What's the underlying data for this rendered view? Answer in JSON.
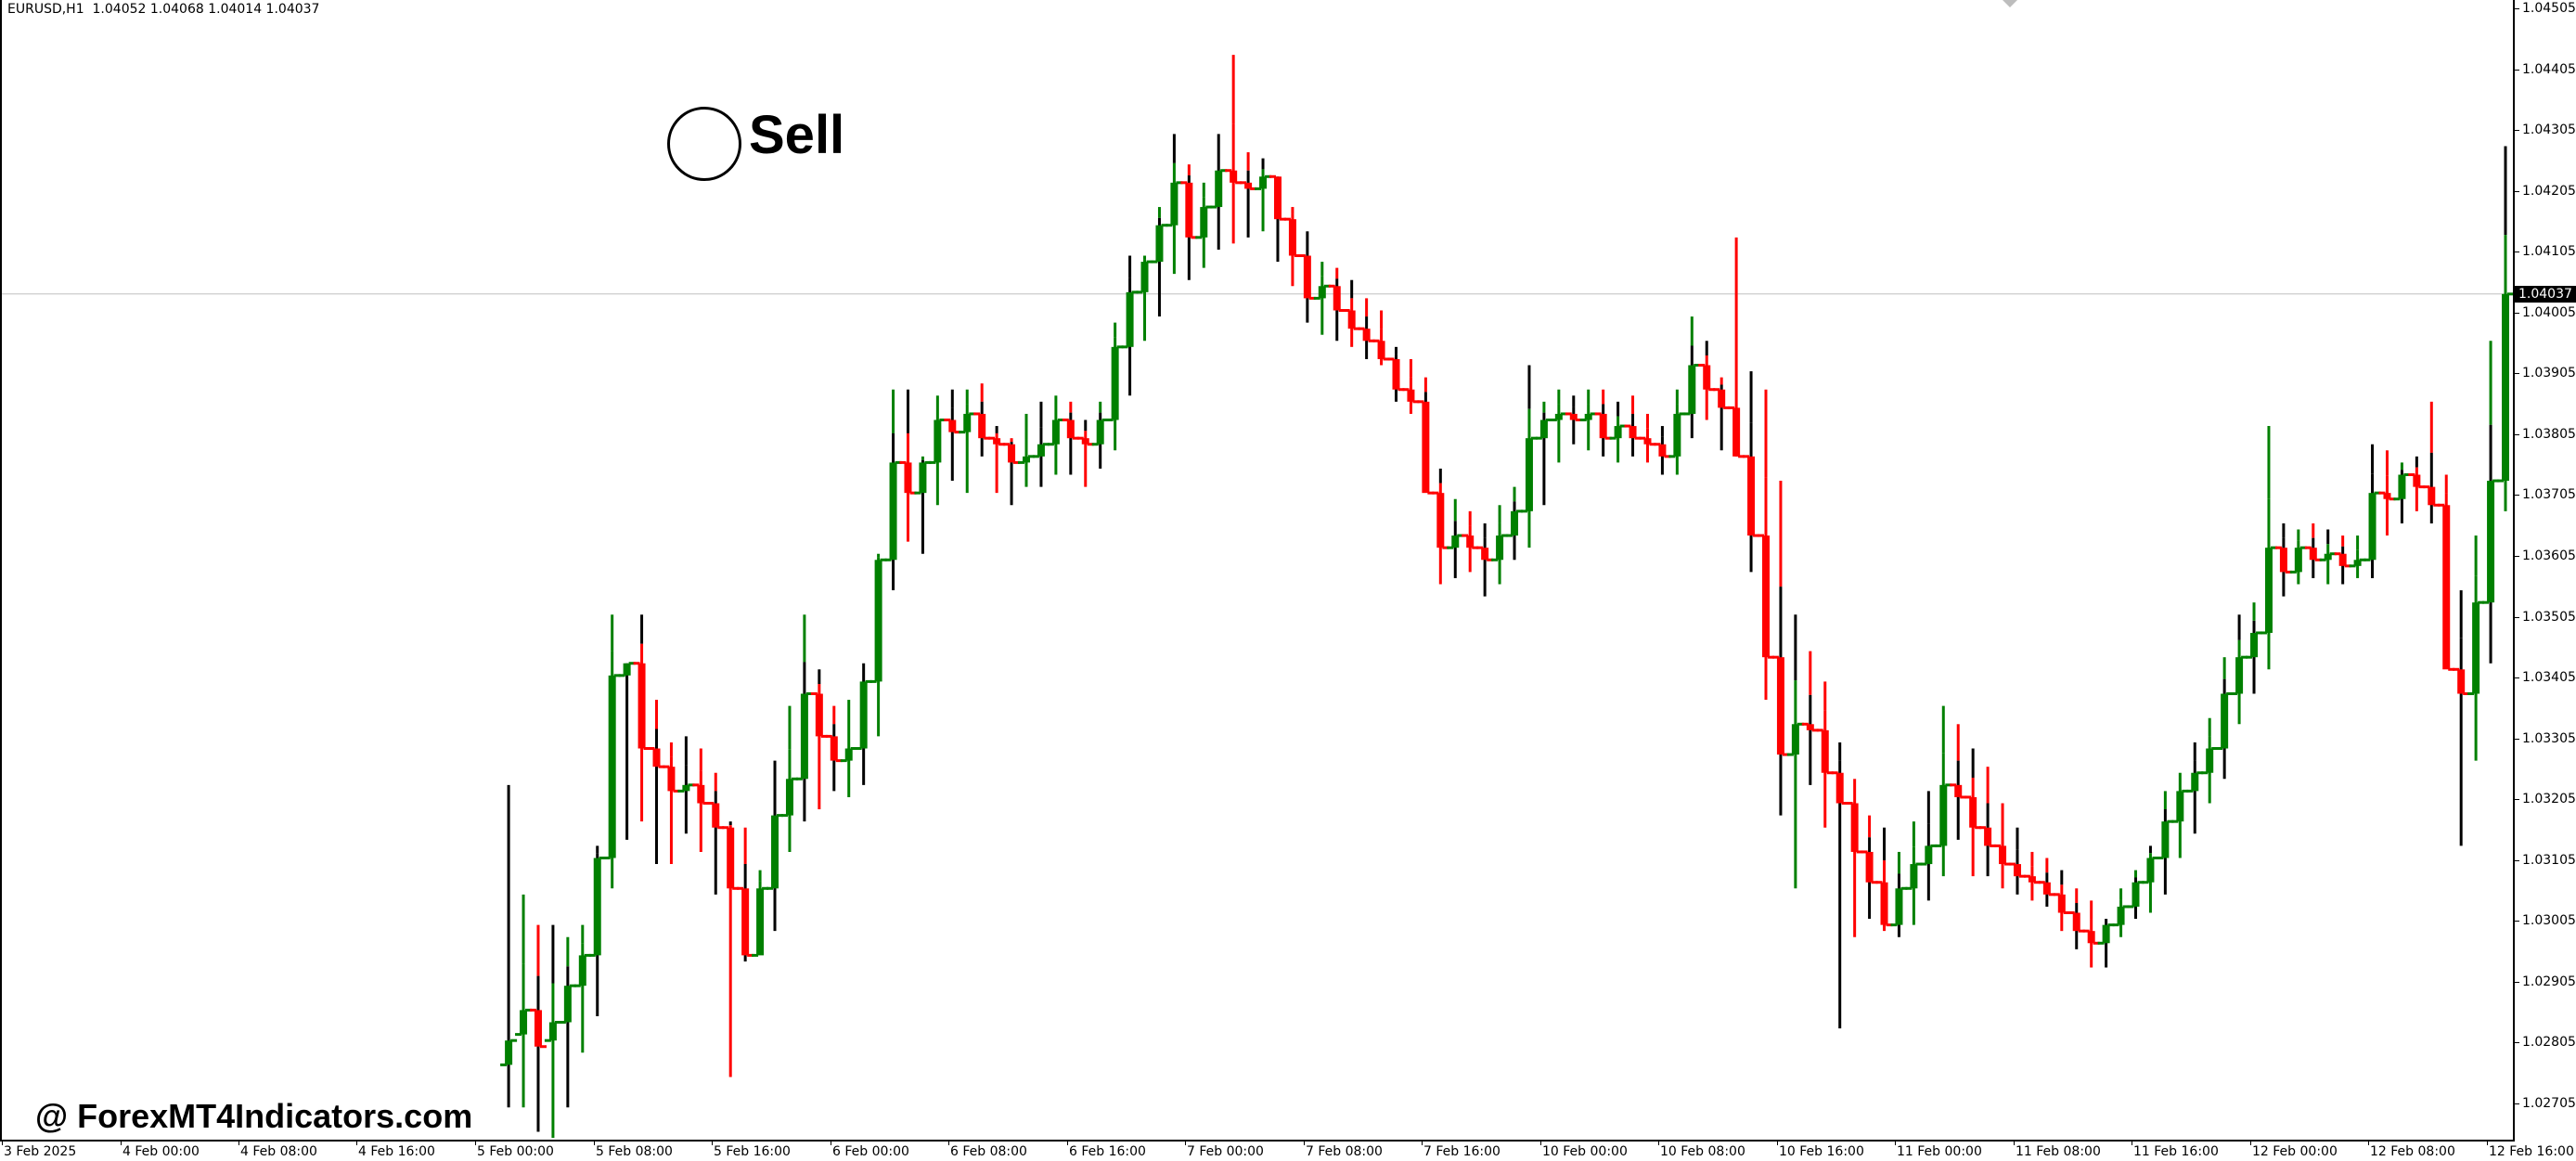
{
  "window": {
    "symbol_info": "EURUSD,H1  1.04052 1.04068 1.04014 1.04037",
    "watermark": "@ ForexMT4Indicators.com",
    "signal_label": "Sell"
  },
  "colors": {
    "bull": "#008000",
    "bear": "#ff0000",
    "neutral": "#000000",
    "grid_current": "#c0c0c0"
  },
  "price_axis": {
    "ticks": [
      "1.04505",
      "1.04405",
      "1.04305",
      "1.04205",
      "1.04105",
      "1.04005",
      "1.03905",
      "1.03805",
      "1.03705",
      "1.03605",
      "1.03505",
      "1.03405",
      "1.03305",
      "1.03205",
      "1.03105",
      "1.03005",
      "1.02905",
      "1.02805",
      "1.02705"
    ],
    "current_price": "1.04037"
  },
  "time_axis": {
    "labels": [
      "3 Feb 2025",
      "4 Feb 00:00",
      "4 Feb 08:00",
      "4 Feb 16:00",
      "5 Feb 00:00",
      "5 Feb 08:00",
      "5 Feb 16:00",
      "6 Feb 00:00",
      "6 Feb 08:00",
      "6 Feb 16:00",
      "7 Feb 00:00",
      "7 Feb 08:00",
      "7 Feb 16:00",
      "10 Feb 00:00",
      "10 Feb 08:00",
      "10 Feb 16:00",
      "11 Feb 00:00",
      "11 Feb 08:00",
      "11 Feb 16:00",
      "12 Feb 00:00",
      "12 Feb 08:00",
      "12 Feb 16:00"
    ]
  },
  "chart_data": {
    "type": "candlestick",
    "title": "EURUSD,H1",
    "header_ohlc": {
      "open": 1.04052,
      "high": 1.04068,
      "low": 1.04014,
      "close": 1.04037
    },
    "ylim": [
      1.02645,
      1.0452
    ],
    "yticks": [
      1.04505,
      1.04405,
      1.04305,
      1.04205,
      1.04105,
      1.04005,
      1.03905,
      1.03805,
      1.03705,
      1.03605,
      1.03505,
      1.03405,
      1.03305,
      1.03205,
      1.03105,
      1.03005,
      1.02905,
      1.02805,
      1.02705
    ],
    "xticks": [
      "3 Feb 2025",
      "4 Feb 00:00",
      "4 Feb 08:00",
      "4 Feb 16:00",
      "5 Feb 00:00",
      "5 Feb 08:00",
      "5 Feb 16:00",
      "6 Feb 00:00",
      "6 Feb 08:00",
      "6 Feb 16:00",
      "7 Feb 00:00",
      "7 Feb 08:00",
      "7 Feb 16:00",
      "10 Feb 00:00",
      "10 Feb 08:00",
      "10 Feb 16:00",
      "11 Feb 00:00",
      "11 Feb 08:00",
      "11 Feb 16:00",
      "12 Feb 00:00",
      "12 Feb 08:00",
      "12 Feb 16:00"
    ],
    "current_price": 1.04037,
    "annotations": [
      {
        "text": "Sell",
        "near": "5 Feb ~11:00",
        "price": 1.0429
      }
    ],
    "ohlc": [
      [
        1.0277,
        1.0323,
        1.027,
        1.0281
      ],
      [
        1.0282,
        1.0305,
        1.027,
        1.0286
      ],
      [
        1.0286,
        1.03,
        1.0266,
        1.028
      ],
      [
        1.0281,
        1.03,
        1.0265,
        1.0284
      ],
      [
        1.0284,
        1.0298,
        1.027,
        1.029
      ],
      [
        1.029,
        1.03,
        1.0279,
        1.0295
      ],
      [
        1.0295,
        1.0313,
        1.0285,
        1.0311
      ],
      [
        1.0311,
        1.0351,
        1.0306,
        1.0341
      ],
      [
        1.0341,
        1.0343,
        1.0314,
        1.0343
      ],
      [
        1.0343,
        1.0351,
        1.0317,
        1.0329
      ],
      [
        1.0329,
        1.0337,
        1.031,
        1.0326
      ],
      [
        1.0326,
        1.033,
        1.031,
        1.0322
      ],
      [
        1.0322,
        1.0331,
        1.0315,
        1.0323
      ],
      [
        1.0323,
        1.0329,
        1.0312,
        1.032
      ],
      [
        1.032,
        1.0325,
        1.0305,
        1.0316
      ],
      [
        1.0316,
        1.0317,
        1.0275,
        1.0306
      ],
      [
        1.0306,
        1.0316,
        1.0294,
        1.0295
      ],
      [
        1.0295,
        1.0309,
        1.0296,
        1.0306
      ],
      [
        1.0306,
        1.0327,
        1.0299,
        1.0318
      ],
      [
        1.0318,
        1.0336,
        1.0312,
        1.0324
      ],
      [
        1.0324,
        1.0351,
        1.0317,
        1.0338
      ],
      [
        1.0338,
        1.0342,
        1.0319,
        1.0331
      ],
      [
        1.0331,
        1.0336,
        1.0322,
        1.0327
      ],
      [
        1.0327,
        1.0337,
        1.0321,
        1.0329
      ],
      [
        1.0329,
        1.0343,
        1.0323,
        1.034
      ],
      [
        1.034,
        1.0361,
        1.0331,
        1.036
      ],
      [
        1.036,
        1.0388,
        1.0355,
        1.0376
      ],
      [
        1.0376,
        1.0388,
        1.0363,
        1.0371
      ],
      [
        1.0371,
        1.0377,
        1.0361,
        1.0376
      ],
      [
        1.0376,
        1.0387,
        1.0369,
        1.0383
      ],
      [
        1.0383,
        1.0388,
        1.0373,
        1.0381
      ],
      [
        1.0381,
        1.0388,
        1.0371,
        1.0384
      ],
      [
        1.0384,
        1.0389,
        1.0377,
        1.038
      ],
      [
        1.038,
        1.0382,
        1.0371,
        1.0379
      ],
      [
        1.0379,
        1.038,
        1.0369,
        1.0376
      ],
      [
        1.0376,
        1.0384,
        1.0372,
        1.0377
      ],
      [
        1.0377,
        1.0386,
        1.0372,
        1.0379
      ],
      [
        1.0379,
        1.0387,
        1.0374,
        1.0383
      ],
      [
        1.0383,
        1.0386,
        1.0374,
        1.038
      ],
      [
        1.038,
        1.0383,
        1.0372,
        1.0379
      ],
      [
        1.0379,
        1.0386,
        1.0375,
        1.0383
      ],
      [
        1.0383,
        1.0399,
        1.0378,
        1.0395
      ],
      [
        1.0395,
        1.041,
        1.0387,
        1.0404
      ],
      [
        1.0404,
        1.041,
        1.0396,
        1.0409
      ],
      [
        1.0409,
        1.0418,
        1.04,
        1.0415
      ],
      [
        1.0415,
        1.043,
        1.0407,
        1.0422
      ],
      [
        1.0422,
        1.0425,
        1.0406,
        1.0413
      ],
      [
        1.0413,
        1.0422,
        1.0408,
        1.0418
      ],
      [
        1.0418,
        1.043,
        1.0411,
        1.0424
      ],
      [
        1.0424,
        1.0443,
        1.0412,
        1.0422
      ],
      [
        1.0422,
        1.0427,
        1.0413,
        1.0421
      ],
      [
        1.0421,
        1.0426,
        1.0414,
        1.0423
      ],
      [
        1.0423,
        1.0423,
        1.0409,
        1.0416
      ],
      [
        1.0416,
        1.0418,
        1.0405,
        1.041
      ],
      [
        1.041,
        1.0414,
        1.0399,
        1.0403
      ],
      [
        1.0403,
        1.0409,
        1.0397,
        1.0405
      ],
      [
        1.0405,
        1.0408,
        1.0396,
        1.0401
      ],
      [
        1.0401,
        1.0406,
        1.0395,
        1.0398
      ],
      [
        1.0398,
        1.0403,
        1.0393,
        1.0396
      ],
      [
        1.0396,
        1.0401,
        1.0392,
        1.0393
      ],
      [
        1.0393,
        1.0395,
        1.0386,
        1.0388
      ],
      [
        1.0388,
        1.0393,
        1.0384,
        1.0386
      ],
      [
        1.0386,
        1.039,
        1.0376,
        1.0371
      ],
      [
        1.0371,
        1.0375,
        1.0356,
        1.0362
      ],
      [
        1.0362,
        1.037,
        1.0357,
        1.0364
      ],
      [
        1.0364,
        1.0368,
        1.0358,
        1.0362
      ],
      [
        1.0362,
        1.0366,
        1.0354,
        1.036
      ],
      [
        1.036,
        1.0369,
        1.0356,
        1.0364
      ],
      [
        1.0364,
        1.0372,
        1.036,
        1.0368
      ],
      [
        1.0368,
        1.0392,
        1.0362,
        1.038
      ],
      [
        1.038,
        1.0386,
        1.0369,
        1.0383
      ],
      [
        1.0383,
        1.0388,
        1.0376,
        1.0384
      ],
      [
        1.0384,
        1.0387,
        1.0379,
        1.0383
      ],
      [
        1.0383,
        1.0388,
        1.0378,
        1.0384
      ],
      [
        1.0384,
        1.0388,
        1.0377,
        1.038
      ],
      [
        1.038,
        1.0386,
        1.0376,
        1.0382
      ],
      [
        1.0382,
        1.0387,
        1.0377,
        1.038
      ],
      [
        1.038,
        1.0384,
        1.0376,
        1.0379
      ],
      [
        1.0379,
        1.0382,
        1.0374,
        1.0377
      ],
      [
        1.0377,
        1.0388,
        1.0374,
        1.0384
      ],
      [
        1.0384,
        1.04,
        1.038,
        1.0392
      ],
      [
        1.0392,
        1.0396,
        1.0383,
        1.0388
      ],
      [
        1.0388,
        1.039,
        1.0378,
        1.0385
      ],
      [
        1.0385,
        1.0413,
        1.0377,
        1.0377
      ],
      [
        1.0377,
        1.0391,
        1.0358,
        1.0364
      ],
      [
        1.0364,
        1.0388,
        1.0337,
        1.0344
      ],
      [
        1.0344,
        1.0373,
        1.0318,
        1.0328
      ],
      [
        1.0328,
        1.0351,
        1.0306,
        1.0333
      ],
      [
        1.0333,
        1.0345,
        1.0323,
        1.0332
      ],
      [
        1.0332,
        1.034,
        1.0316,
        1.0325
      ],
      [
        1.0325,
        1.033,
        1.0283,
        1.032
      ],
      [
        1.032,
        1.0324,
        1.0298,
        1.0312
      ],
      [
        1.0312,
        1.0318,
        1.0301,
        1.0307
      ],
      [
        1.0307,
        1.0316,
        1.0299,
        1.03
      ],
      [
        1.03,
        1.0312,
        1.0298,
        1.0306
      ],
      [
        1.0306,
        1.0317,
        1.03,
        1.031
      ],
      [
        1.031,
        1.0322,
        1.0304,
        1.0313
      ],
      [
        1.0313,
        1.0336,
        1.0308,
        1.0323
      ],
      [
        1.0323,
        1.0333,
        1.0314,
        1.0321
      ],
      [
        1.0321,
        1.0329,
        1.0308,
        1.0316
      ],
      [
        1.0316,
        1.0326,
        1.0308,
        1.0313
      ],
      [
        1.0313,
        1.032,
        1.0306,
        1.031
      ],
      [
        1.031,
        1.0316,
        1.0305,
        1.0308
      ],
      [
        1.0308,
        1.0312,
        1.0304,
        1.0307
      ],
      [
        1.0307,
        1.0311,
        1.0303,
        1.0305
      ],
      [
        1.0305,
        1.0309,
        1.0299,
        1.0302
      ],
      [
        1.0302,
        1.0306,
        1.0296,
        1.0299
      ],
      [
        1.0299,
        1.0304,
        1.0293,
        1.0297
      ],
      [
        1.0297,
        1.0301,
        1.0293,
        1.03
      ],
      [
        1.03,
        1.0306,
        1.0298,
        1.0303
      ],
      [
        1.0303,
        1.0309,
        1.0301,
        1.0307
      ],
      [
        1.0307,
        1.0313,
        1.0302,
        1.0311
      ],
      [
        1.0311,
        1.0322,
        1.0305,
        1.0317
      ],
      [
        1.0317,
        1.0325,
        1.0311,
        1.0322
      ],
      [
        1.0322,
        1.033,
        1.0315,
        1.0325
      ],
      [
        1.0325,
        1.0334,
        1.032,
        1.0329
      ],
      [
        1.0329,
        1.0344,
        1.0324,
        1.0338
      ],
      [
        1.0338,
        1.0351,
        1.0333,
        1.0344
      ],
      [
        1.0344,
        1.0353,
        1.0338,
        1.0348
      ],
      [
        1.0348,
        1.0382,
        1.0342,
        1.0362
      ],
      [
        1.0362,
        1.0366,
        1.0354,
        1.0358
      ],
      [
        1.0358,
        1.0365,
        1.0356,
        1.0362
      ],
      [
        1.0362,
        1.0366,
        1.0357,
        1.036
      ],
      [
        1.036,
        1.0365,
        1.0356,
        1.0361
      ],
      [
        1.0361,
        1.0364,
        1.0356,
        1.0359
      ],
      [
        1.0359,
        1.0364,
        1.0357,
        1.036
      ],
      [
        1.036,
        1.0379,
        1.0357,
        1.0371
      ],
      [
        1.0371,
        1.0378,
        1.0364,
        1.037
      ],
      [
        1.037,
        1.0376,
        1.0366,
        1.0374
      ],
      [
        1.0374,
        1.0377,
        1.0368,
        1.0372
      ],
      [
        1.0372,
        1.0386,
        1.0366,
        1.0369
      ],
      [
        1.0369,
        1.0374,
        1.0344,
        1.0342
      ],
      [
        1.0342,
        1.0355,
        1.0313,
        1.0338
      ],
      [
        1.0338,
        1.0364,
        1.0327,
        1.0353
      ],
      [
        1.0353,
        1.0396,
        1.0343,
        1.0373
      ],
      [
        1.0373,
        1.0428,
        1.0368,
        1.04037
      ]
    ]
  }
}
